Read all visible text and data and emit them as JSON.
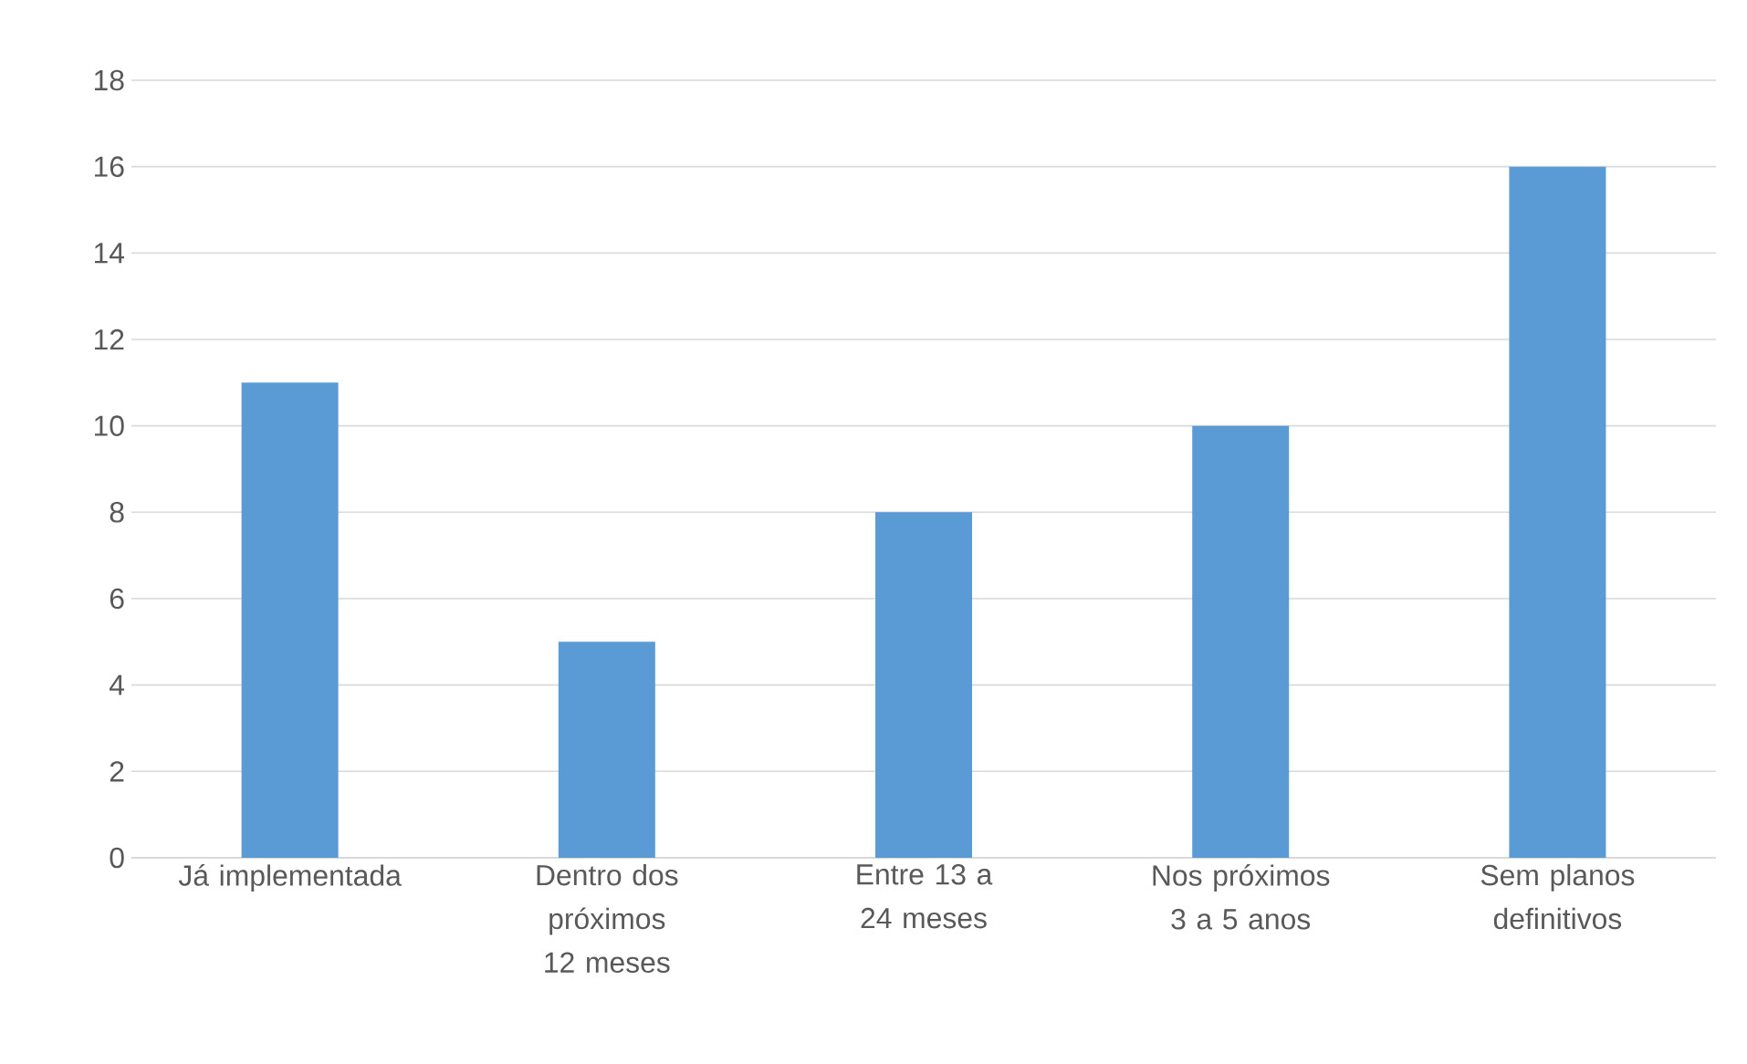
{
  "chart_data": {
    "type": "bar",
    "categories": [
      "Já implementada",
      "Dentro dos próximos 12 meses",
      "Entre 13 a 24 meses",
      "Nos próximos 3 a 5 anos",
      "Sem planos definitivos"
    ],
    "values": [
      11,
      5,
      8,
      10,
      16
    ],
    "color": "#5b9bd5",
    "ylim": [
      0,
      18
    ],
    "yticks": [
      0,
      2,
      4,
      6,
      8,
      10,
      12,
      14,
      16,
      18
    ],
    "grid": "y"
  }
}
